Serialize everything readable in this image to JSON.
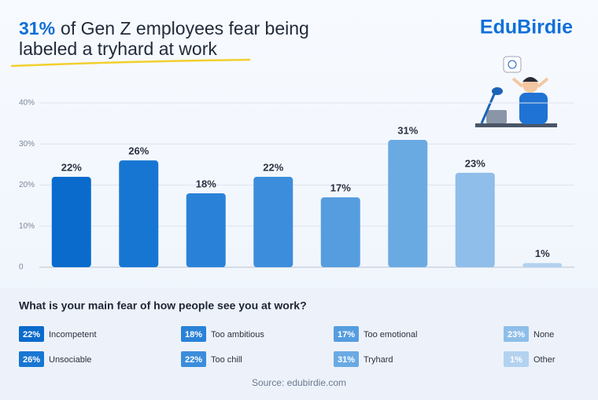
{
  "chart_data": {
    "type": "bar",
    "title_highlight": "31%",
    "title_line1": "of Gen Z employees fear being",
    "title_line2": "labeled a tryhard at work",
    "brand": "EduBirdie",
    "question": "What is your main fear of how people see you at work?",
    "source": "Source: edubirdie.com",
    "categories": [
      "Incompetent",
      "Unsociable",
      "Too ambitious",
      "Too chill",
      "Too emotional",
      "Tryhard",
      "None",
      "Other"
    ],
    "values": [
      22,
      26,
      18,
      22,
      17,
      31,
      23,
      1
    ],
    "value_labels": [
      "22%",
      "26%",
      "18%",
      "22%",
      "17%",
      "31%",
      "23%",
      "1%"
    ],
    "colors": [
      "#0a6bcc",
      "#1876d3",
      "#2a82d8",
      "#3c8ddb",
      "#559ddf",
      "#6aaae3",
      "#8ebee9",
      "#b3d2ef"
    ],
    "ylim": [
      0,
      40
    ],
    "yticks": [
      0,
      {
        "value": 10,
        "label": "10%"
      },
      {
        "value": 20,
        "label": "20%"
      },
      {
        "value": 30,
        "label": "30%"
      },
      {
        "value": 40,
        "label": "40%"
      }
    ],
    "grid": true
  }
}
